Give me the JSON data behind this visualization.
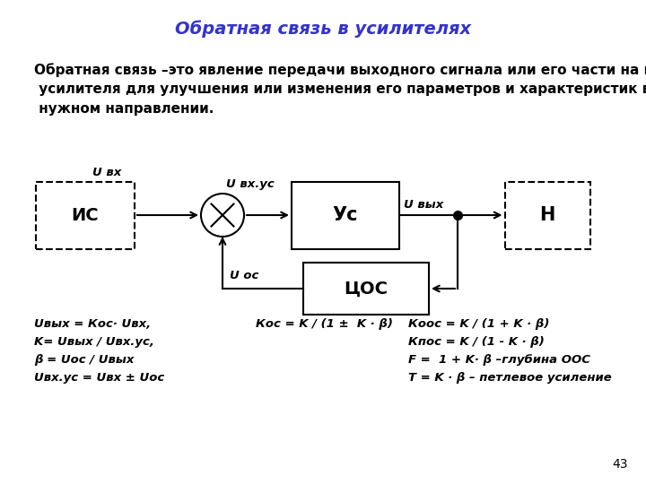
{
  "title": "Обратная связь в усилителях",
  "title_color": "#3333cc",
  "title_fontsize": 14,
  "body_text": "Обратная связь –это явление передачи выходного сигнала или его части на вход\n усилителя для улучшения или изменения его параметров и характеристик в\n нужном направлении.",
  "body_fontsize": 11,
  "formulas_left": [
    "Uвых = Кос· Uвх,",
    "K= Uвых / Uвх.ус,",
    "β = Uос / Uвых",
    "Uвх.ус = Uвх ± Uос"
  ],
  "formulas_center": [
    "Кос = K / (1 ±  K · β)"
  ],
  "formulas_right": [
    "Кoос = K / (1 + K · β)",
    "Кпос = K / (1 - K · β)",
    "F =  1 + K· β –глубина ООС",
    "T = K · β – петлевое усиление"
  ],
  "page_number": "43",
  "background_color": "#ffffff"
}
